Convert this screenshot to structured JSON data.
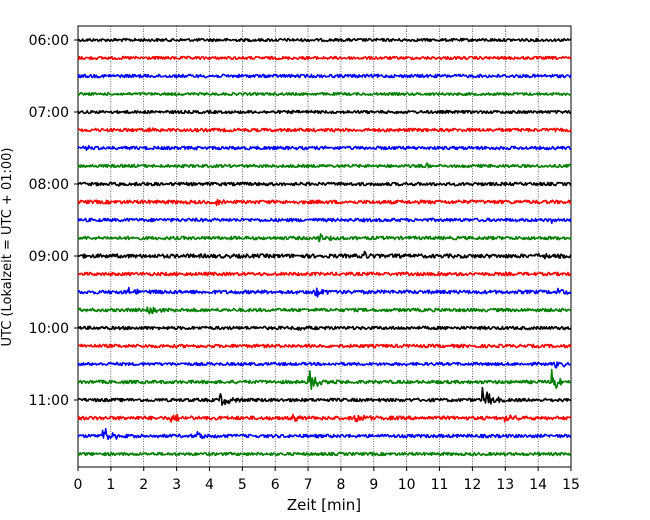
{
  "chart_data": {
    "type": "line",
    "subtype": "helicorder",
    "title": "",
    "xlabel": "Zeit  [min]",
    "ylabel": "UTC (Lokalzeit = UTC + 01:00)",
    "xlim": [
      0,
      15
    ],
    "x_ticks": [
      "0",
      "1",
      "2",
      "3",
      "4",
      "5",
      "6",
      "7",
      "8",
      "9",
      "10",
      "11",
      "12",
      "13",
      "14",
      "15"
    ],
    "y_ticks": [
      "06:00",
      "07:00",
      "08:00",
      "09:00",
      "10:00",
      "11:00"
    ],
    "grid": "vertical-dotted",
    "trace_colors": [
      "#000000",
      "#ff0000",
      "#0000ff",
      "#008000"
    ],
    "traces": [
      {
        "start": "06:00",
        "color": "#000000",
        "amplitude": 0.9,
        "events": []
      },
      {
        "start": "06:15",
        "color": "#ff0000",
        "amplitude": 0.9,
        "events": []
      },
      {
        "start": "06:30",
        "color": "#0000ff",
        "amplitude": 1.0,
        "events": []
      },
      {
        "start": "06:45",
        "color": "#008000",
        "amplitude": 0.8,
        "events": []
      },
      {
        "start": "07:00",
        "color": "#000000",
        "amplitude": 0.9,
        "events": []
      },
      {
        "start": "07:15",
        "color": "#ff0000",
        "amplitude": 1.0,
        "events": [
          {
            "t": 2.1,
            "amp": 2.0
          }
        ]
      },
      {
        "start": "07:30",
        "color": "#0000ff",
        "amplitude": 1.0,
        "events": [
          {
            "t": 0.1,
            "amp": 2.5
          }
        ]
      },
      {
        "start": "07:45",
        "color": "#008000",
        "amplitude": 0.9,
        "events": [
          {
            "t": 10.6,
            "amp": 2.5
          }
        ]
      },
      {
        "start": "08:00",
        "color": "#000000",
        "amplitude": 1.0,
        "events": [
          {
            "t": 1.2,
            "amp": 2.0
          }
        ]
      },
      {
        "start": "08:15",
        "color": "#ff0000",
        "amplitude": 1.1,
        "events": [
          {
            "t": 4.2,
            "amp": 4.0
          }
        ]
      },
      {
        "start": "08:30",
        "color": "#0000ff",
        "amplitude": 1.0,
        "events": [
          {
            "t": 14.4,
            "amp": 2.5
          }
        ]
      },
      {
        "start": "08:45",
        "color": "#008000",
        "amplitude": 1.0,
        "events": [
          {
            "t": 7.3,
            "amp": 6.0
          }
        ]
      },
      {
        "start": "09:00",
        "color": "#000000",
        "amplitude": 1.2,
        "events": [
          {
            "t": 8.7,
            "amp": 4.5
          },
          {
            "t": 14.0,
            "amp": 4.0
          }
        ]
      },
      {
        "start": "09:15",
        "color": "#ff0000",
        "amplitude": 1.0,
        "events": [
          {
            "t": 10.8,
            "amp": 3.5
          }
        ]
      },
      {
        "start": "09:30",
        "color": "#0000ff",
        "amplitude": 1.1,
        "events": [
          {
            "t": 1.5,
            "amp": 5.0
          },
          {
            "t": 7.2,
            "amp": 7.0
          },
          {
            "t": 14.6,
            "amp": 3.5
          }
        ]
      },
      {
        "start": "09:45",
        "color": "#008000",
        "amplitude": 1.0,
        "events": [
          {
            "t": 2.1,
            "amp": 5.0
          }
        ]
      },
      {
        "start": "10:00",
        "color": "#000000",
        "amplitude": 1.0,
        "events": [
          {
            "t": 6.6,
            "amp": 3.0
          }
        ]
      },
      {
        "start": "10:15",
        "color": "#ff0000",
        "amplitude": 1.0,
        "events": [
          {
            "t": 7.0,
            "amp": 3.0
          }
        ]
      },
      {
        "start": "10:30",
        "color": "#0000ff",
        "amplitude": 0.9,
        "events": [
          {
            "t": 14.5,
            "amp": 5.0
          }
        ]
      },
      {
        "start": "10:45",
        "color": "#008000",
        "amplitude": 1.0,
        "events": [
          {
            "t": 7.0,
            "amp": 13.0
          },
          {
            "t": 14.4,
            "amp": 14.0
          }
        ]
      },
      {
        "start": "11:00",
        "color": "#000000",
        "amplitude": 1.0,
        "events": [
          {
            "t": 4.3,
            "amp": 8.0
          },
          {
            "t": 12.3,
            "amp": 15.0
          }
        ]
      },
      {
        "start": "11:15",
        "color": "#ff0000",
        "amplitude": 1.1,
        "events": [
          {
            "t": 2.8,
            "amp": 6.0
          },
          {
            "t": 6.5,
            "amp": 4.0
          },
          {
            "t": 8.4,
            "amp": 8.0
          },
          {
            "t": 12.9,
            "amp": 6.0
          }
        ]
      },
      {
        "start": "11:30",
        "color": "#0000ff",
        "amplitude": 1.0,
        "events": [
          {
            "t": 0.75,
            "amp": 10.0
          },
          {
            "t": 3.6,
            "amp": 4.0
          }
        ]
      },
      {
        "start": "11:45",
        "color": "#008000",
        "amplitude": 0.9,
        "events": []
      }
    ]
  }
}
